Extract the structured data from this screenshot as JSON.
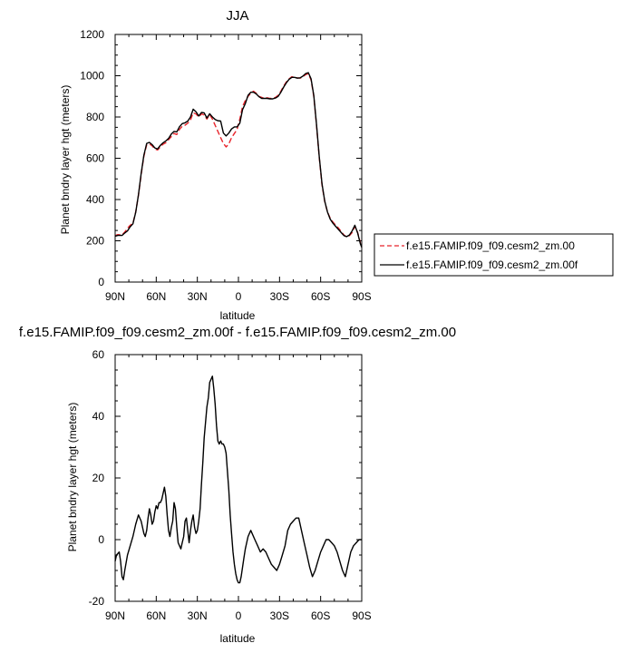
{
  "chart_data": [
    {
      "type": "line",
      "title": "JJA",
      "xlabel": "latitude",
      "ylabel": "Planet bndry layer hgt (meters)",
      "xlim": [
        90,
        -90
      ],
      "ylim": [
        0,
        1200
      ],
      "xticks": [
        90,
        60,
        30,
        0,
        -30,
        -60,
        -90
      ],
      "xtick_labels": [
        "90N",
        "60N",
        "30N",
        "0",
        "30S",
        "60S",
        "90S"
      ],
      "yticks": [
        0,
        200,
        400,
        600,
        800,
        1000,
        1200
      ],
      "ytick_labels": [
        "0",
        "200",
        "400",
        "600",
        "800",
        "1000",
        "1200"
      ],
      "grid": false,
      "legend": "right",
      "series": [
        {
          "name": "f.e15.FAMIP.f09_f09.cesm2_zm.00",
          "color": "#e8232a",
          "dash": "dashed",
          "x": [
            90,
            88,
            85,
            83,
            81,
            79,
            77,
            75,
            73,
            71,
            69,
            67,
            65,
            63,
            61,
            59,
            57,
            55,
            53,
            51,
            49,
            47,
            45,
            43,
            41,
            39,
            37,
            35,
            33,
            31,
            29,
            27,
            25,
            23,
            21,
            19,
            17,
            15,
            13,
            11,
            9,
            7,
            5,
            3,
            1,
            -1,
            -3,
            -5,
            -7,
            -9,
            -11,
            -13,
            -15,
            -17,
            -19,
            -21,
            -23,
            -25,
            -27,
            -29,
            -31,
            -33,
            -35,
            -37,
            -39,
            -41,
            -43,
            -45,
            -47,
            -49,
            -51,
            -53,
            -55,
            -57,
            -59,
            -61,
            -63,
            -65,
            -67,
            -69,
            -71,
            -73,
            -75,
            -77,
            -79,
            -81,
            -83,
            -85,
            -87,
            -89,
            -90
          ],
          "y": [
            225,
            230,
            228,
            242,
            260,
            275,
            285,
            340,
            420,
            520,
            610,
            665,
            670,
            660,
            645,
            640,
            655,
            668,
            675,
            690,
            705,
            720,
            715,
            740,
            755,
            760,
            770,
            785,
            820,
            815,
            800,
            815,
            810,
            790,
            812,
            790,
            760,
            730,
            700,
            672,
            655,
            670,
            700,
            720,
            740,
            790,
            850,
            880,
            900,
            915,
            925,
            915,
            900,
            895,
            890,
            893,
            890,
            890,
            895,
            905,
            925,
            950,
            970,
            985,
            995,
            992,
            990,
            988,
            995,
            1005,
            1010,
            980,
            900,
            760,
            600,
            470,
            390,
            340,
            310,
            290,
            275,
            262,
            245,
            228,
            218,
            225,
            240,
            270,
            240,
            190,
            170
          ]
        },
        {
          "name": "f.e15.FAMIP.f09_f09.cesm2_zm.00f",
          "color": "#000000",
          "dash": "solid",
          "x": [
            90,
            88,
            85,
            83,
            81,
            79,
            77,
            75,
            73,
            71,
            69,
            67,
            65,
            63,
            61,
            59,
            57,
            55,
            53,
            51,
            49,
            47,
            45,
            43,
            41,
            39,
            37,
            35,
            33,
            31,
            29,
            27,
            25,
            23,
            21,
            19,
            17,
            15,
            13,
            11,
            9,
            7,
            5,
            3,
            1,
            -1,
            -3,
            -5,
            -7,
            -9,
            -11,
            -13,
            -15,
            -17,
            -19,
            -21,
            -23,
            -25,
            -27,
            -29,
            -31,
            -33,
            -35,
            -37,
            -39,
            -41,
            -43,
            -45,
            -47,
            -49,
            -51,
            -53,
            -55,
            -57,
            -59,
            -61,
            -63,
            -65,
            -67,
            -69,
            -71,
            -73,
            -75,
            -77,
            -79,
            -81,
            -83,
            -85,
            -87,
            -89,
            -90
          ],
          "y": [
            222,
            226,
            226,
            238,
            248,
            268,
            282,
            338,
            423,
            526,
            615,
            672,
            677,
            666,
            650,
            645,
            663,
            675,
            684,
            696,
            718,
            730,
            728,
            753,
            768,
            772,
            780,
            800,
            838,
            825,
            805,
            822,
            820,
            795,
            816,
            800,
            788,
            782,
            780,
            722,
            708,
            722,
            742,
            752,
            752,
            770,
            835,
            865,
            905,
            920,
            920,
            912,
            898,
            890,
            890,
            890,
            888,
            888,
            892,
            900,
            920,
            945,
            966,
            983,
            992,
            992,
            988,
            990,
            998,
            1010,
            1015,
            985,
            905,
            765,
            605,
            475,
            392,
            340,
            305,
            285,
            270,
            255,
            240,
            225,
            220,
            228,
            248,
            275,
            238,
            185,
            168
          ]
        }
      ]
    },
    {
      "type": "line",
      "title": "f.e15.FAMIP.f09_f09.cesm2_zm.00f - f.e15.FAMIP.f09_f09.cesm2_zm.00",
      "xlabel": "latitude",
      "ylabel": "Planet bndry layer hgt (meters)",
      "xlim": [
        90,
        -90
      ],
      "ylim": [
        -20,
        60
      ],
      "xticks": [
        90,
        60,
        30,
        0,
        -30,
        -60,
        -90
      ],
      "xtick_labels": [
        "90N",
        "60N",
        "30N",
        "0",
        "30S",
        "60S",
        "90S"
      ],
      "yticks": [
        -20,
        0,
        20,
        40,
        60
      ],
      "ytick_labels": [
        "-20",
        "0",
        "20",
        "40",
        "60"
      ],
      "grid": false,
      "series": [
        {
          "color": "#000000",
          "dash": "solid",
          "x": [
            90,
            89,
            87,
            86,
            85,
            84,
            83,
            81,
            79,
            77,
            75,
            73,
            71,
            70,
            69,
            68,
            67,
            66,
            65,
            64,
            63,
            62,
            61,
            60,
            59,
            58,
            57,
            56,
            55,
            54,
            53,
            52,
            51,
            50,
            49,
            48,
            47,
            46,
            45,
            44,
            43,
            42,
            41,
            40,
            39,
            38,
            37,
            36,
            35,
            34,
            33,
            32,
            31,
            30,
            29,
            28,
            27,
            26,
            25,
            24,
            23,
            22,
            21,
            20,
            19,
            18,
            17,
            16,
            15,
            14,
            13,
            12,
            11,
            10,
            9,
            8,
            7,
            6,
            5,
            4,
            3,
            2,
            1,
            0,
            -1,
            -2,
            -3,
            -4,
            -5,
            -6,
            -7,
            -8,
            -9,
            -10,
            -12,
            -14,
            -16,
            -18,
            -20,
            -22,
            -24,
            -26,
            -28,
            -30,
            -32,
            -34,
            -36,
            -38,
            -40,
            -42,
            -44,
            -46,
            -48,
            -50,
            -52,
            -54,
            -56,
            -58,
            -60,
            -62,
            -64,
            -66,
            -68,
            -70,
            -72,
            -74,
            -76,
            -78,
            -80,
            -82,
            -84,
            -86,
            -88,
            -90
          ],
          "y": [
            -7,
            -5,
            -4,
            -7,
            -12,
            -13,
            -10,
            -5,
            -2,
            1,
            5,
            8,
            6,
            4,
            2,
            1,
            3,
            7,
            10,
            8,
            5,
            6,
            9,
            11,
            10,
            12,
            12,
            13,
            15,
            17,
            14,
            8,
            3,
            1,
            4,
            6,
            12,
            10,
            4,
            -1,
            -2,
            -3,
            -1,
            1,
            6,
            7,
            3,
            -1,
            3,
            6,
            8,
            4,
            2,
            3,
            6,
            10,
            18,
            25,
            33,
            38,
            43,
            46,
            51,
            52,
            53,
            49,
            44,
            37,
            32,
            31,
            32,
            31,
            31,
            30,
            28,
            22,
            16,
            8,
            2,
            -4,
            -8,
            -11,
            -13,
            -14,
            -14,
            -12,
            -9,
            -6,
            -3,
            -1,
            1,
            2,
            3,
            2,
            0,
            -2,
            -4,
            -3,
            -4,
            -6,
            -8,
            -9,
            -10,
            -8,
            -5,
            -2,
            3,
            5,
            6,
            7,
            7,
            3,
            -1,
            -5,
            -9,
            -12,
            -10,
            -7,
            -4,
            -2,
            0,
            0,
            -1,
            -2,
            -4,
            -7,
            -10,
            -12,
            -8,
            -4,
            -2,
            -1,
            0,
            0
          ]
        }
      ]
    }
  ]
}
